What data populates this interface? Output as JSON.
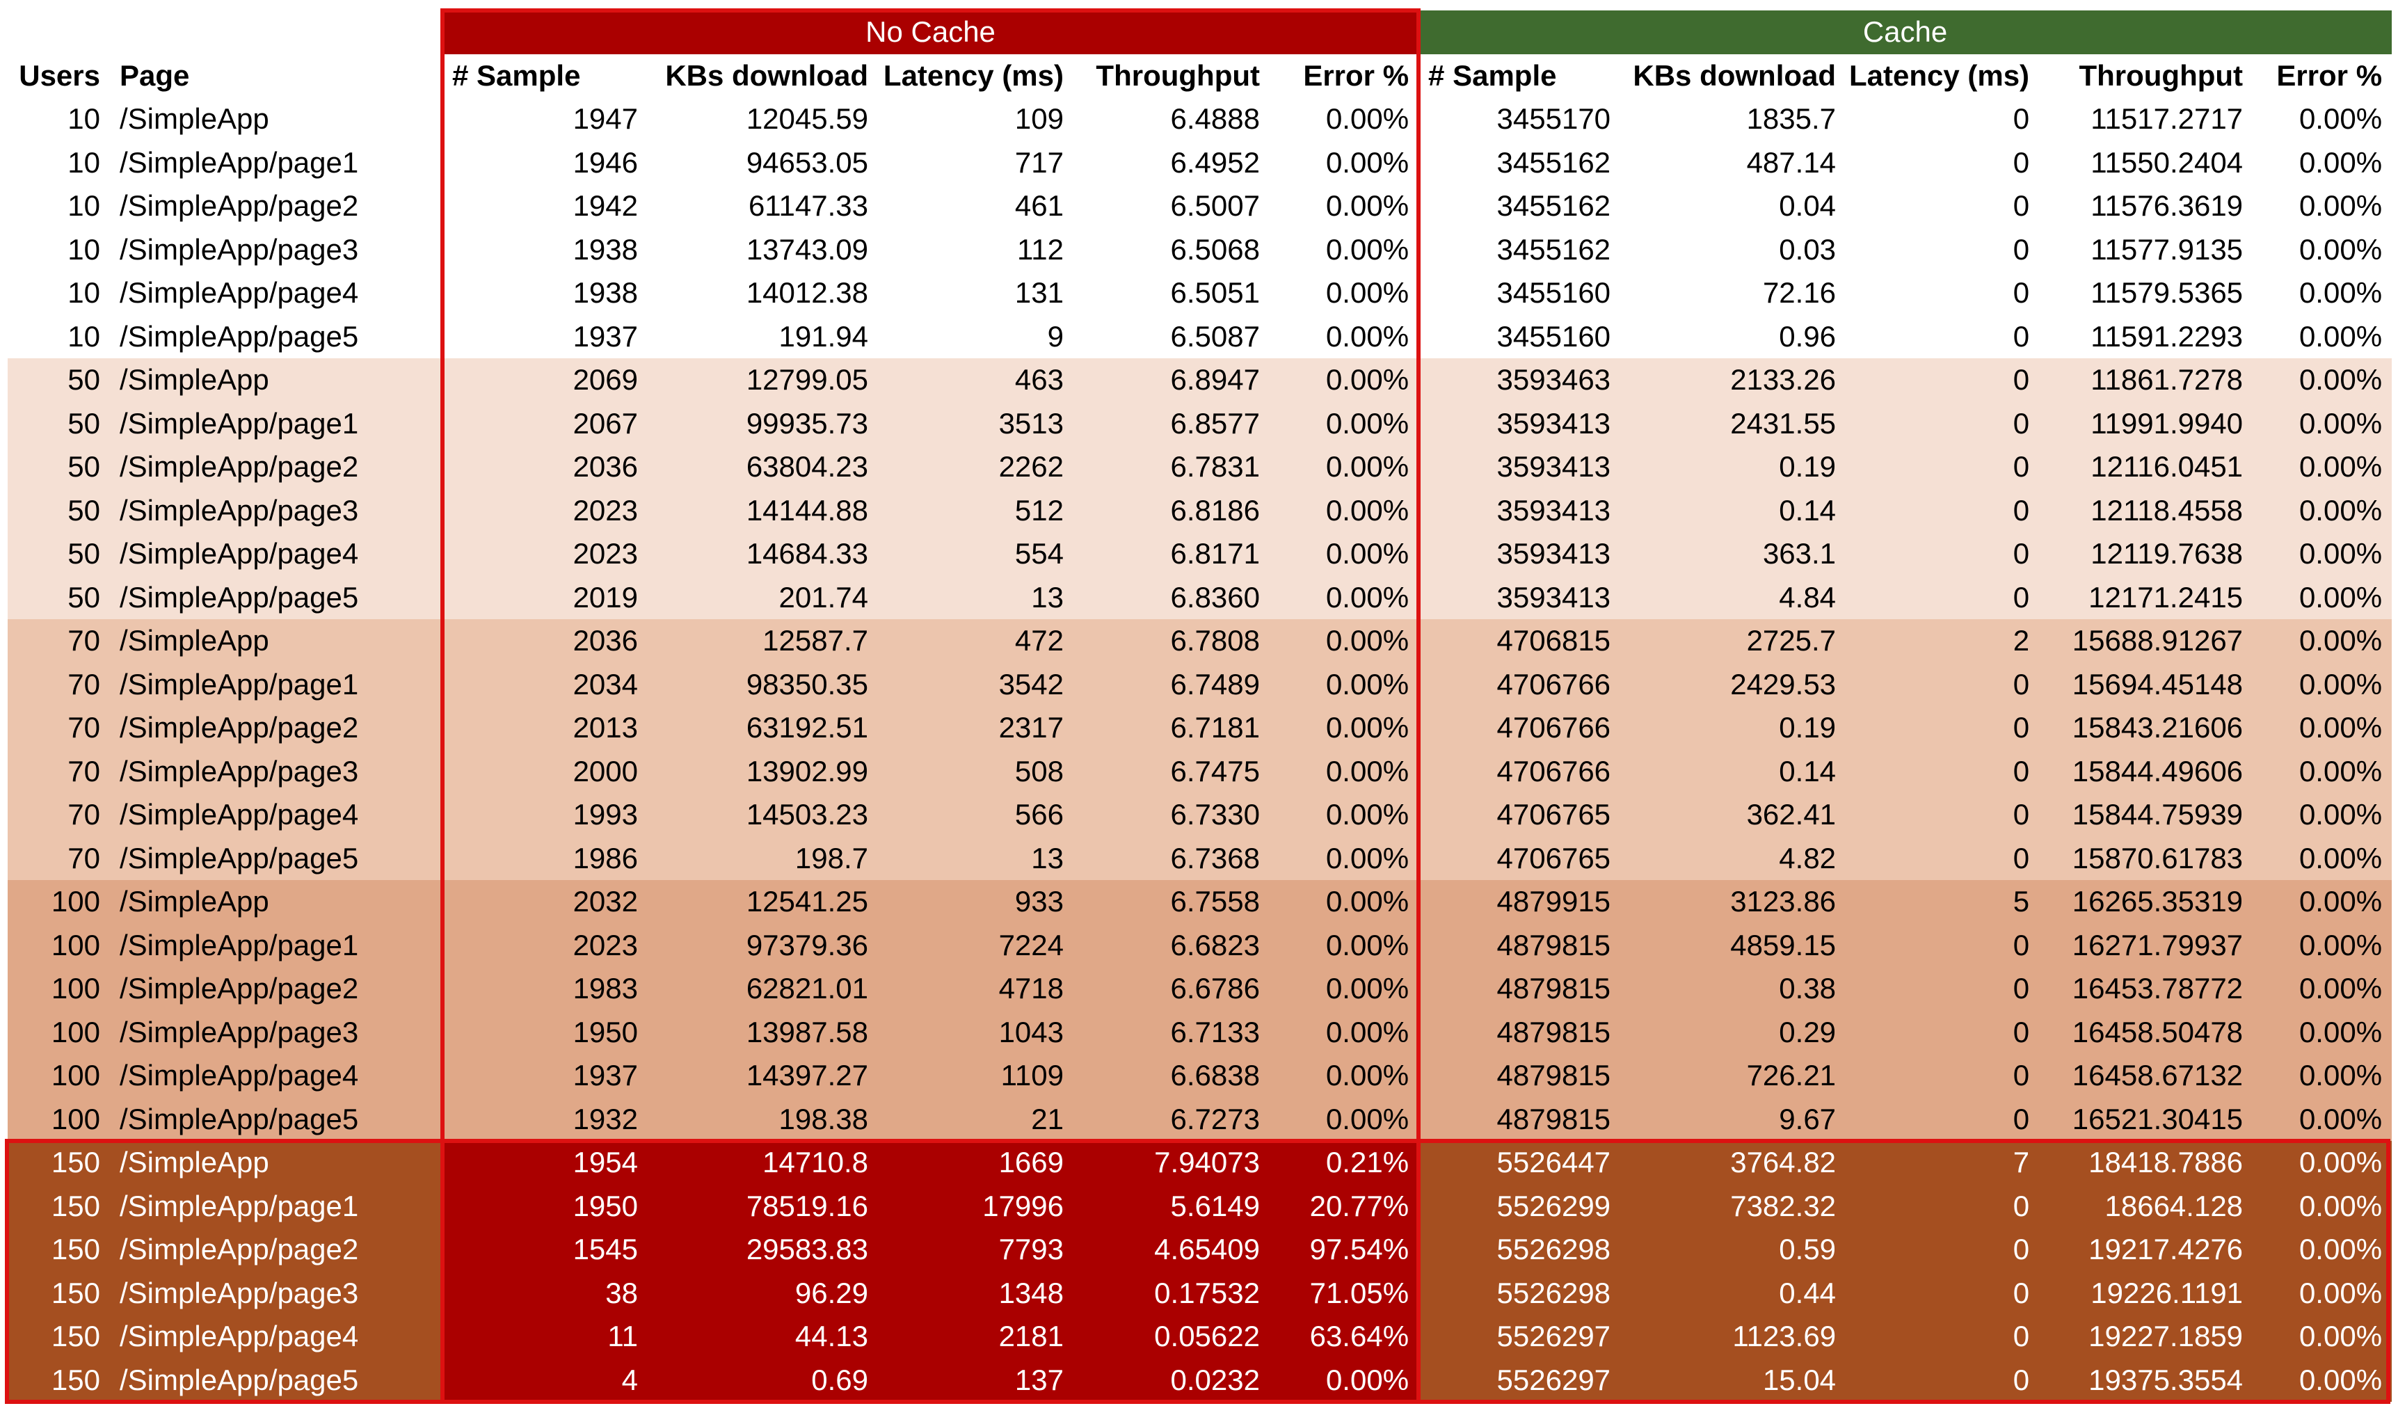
{
  "chart_data": {
    "type": "table",
    "group_headers": {
      "no_cache": "No Cache",
      "cache": "Cache"
    },
    "columns": [
      "Users",
      "Page",
      "# Sample",
      "KBs download",
      "Latency (ms)",
      "Throughput",
      "Error %",
      "# Sample",
      "KBs download",
      "Latency (ms)",
      "Throughput",
      "Error %"
    ],
    "rows": [
      [
        "10",
        "/SimpleApp",
        "1947",
        "12045.59",
        "109",
        "6.4888",
        "0.00%",
        "3455170",
        "1835.7",
        "0",
        "11517.2717",
        "0.00%"
      ],
      [
        "10",
        "/SimpleApp/page1",
        "1946",
        "94653.05",
        "717",
        "6.4952",
        "0.00%",
        "3455162",
        "487.14",
        "0",
        "11550.2404",
        "0.00%"
      ],
      [
        "10",
        "/SimpleApp/page2",
        "1942",
        "61147.33",
        "461",
        "6.5007",
        "0.00%",
        "3455162",
        "0.04",
        "0",
        "11576.3619",
        "0.00%"
      ],
      [
        "10",
        "/SimpleApp/page3",
        "1938",
        "13743.09",
        "112",
        "6.5068",
        "0.00%",
        "3455162",
        "0.03",
        "0",
        "11577.9135",
        "0.00%"
      ],
      [
        "10",
        "/SimpleApp/page4",
        "1938",
        "14012.38",
        "131",
        "6.5051",
        "0.00%",
        "3455160",
        "72.16",
        "0",
        "11579.5365",
        "0.00%"
      ],
      [
        "10",
        "/SimpleApp/page5",
        "1937",
        "191.94",
        "9",
        "6.5087",
        "0.00%",
        "3455160",
        "0.96",
        "0",
        "11591.2293",
        "0.00%"
      ],
      [
        "50",
        "/SimpleApp",
        "2069",
        "12799.05",
        "463",
        "6.8947",
        "0.00%",
        "3593463",
        "2133.26",
        "0",
        "11861.7278",
        "0.00%"
      ],
      [
        "50",
        "/SimpleApp/page1",
        "2067",
        "99935.73",
        "3513",
        "6.8577",
        "0.00%",
        "3593413",
        "2431.55",
        "0",
        "11991.9940",
        "0.00%"
      ],
      [
        "50",
        "/SimpleApp/page2",
        "2036",
        "63804.23",
        "2262",
        "6.7831",
        "0.00%",
        "3593413",
        "0.19",
        "0",
        "12116.0451",
        "0.00%"
      ],
      [
        "50",
        "/SimpleApp/page3",
        "2023",
        "14144.88",
        "512",
        "6.8186",
        "0.00%",
        "3593413",
        "0.14",
        "0",
        "12118.4558",
        "0.00%"
      ],
      [
        "50",
        "/SimpleApp/page4",
        "2023",
        "14684.33",
        "554",
        "6.8171",
        "0.00%",
        "3593413",
        "363.1",
        "0",
        "12119.7638",
        "0.00%"
      ],
      [
        "50",
        "/SimpleApp/page5",
        "2019",
        "201.74",
        "13",
        "6.8360",
        "0.00%",
        "3593413",
        "4.84",
        "0",
        "12171.2415",
        "0.00%"
      ],
      [
        "70",
        "/SimpleApp",
        "2036",
        "12587.7",
        "472",
        "6.7808",
        "0.00%",
        "4706815",
        "2725.7",
        "2",
        "15688.91267",
        "0.00%"
      ],
      [
        "70",
        "/SimpleApp/page1",
        "2034",
        "98350.35",
        "3542",
        "6.7489",
        "0.00%",
        "4706766",
        "2429.53",
        "0",
        "15694.45148",
        "0.00%"
      ],
      [
        "70",
        "/SimpleApp/page2",
        "2013",
        "63192.51",
        "2317",
        "6.7181",
        "0.00%",
        "4706766",
        "0.19",
        "0",
        "15843.21606",
        "0.00%"
      ],
      [
        "70",
        "/SimpleApp/page3",
        "2000",
        "13902.99",
        "508",
        "6.7475",
        "0.00%",
        "4706766",
        "0.14",
        "0",
        "15844.49606",
        "0.00%"
      ],
      [
        "70",
        "/SimpleApp/page4",
        "1993",
        "14503.23",
        "566",
        "6.7330",
        "0.00%",
        "4706765",
        "362.41",
        "0",
        "15844.75939",
        "0.00%"
      ],
      [
        "70",
        "/SimpleApp/page5",
        "1986",
        "198.7",
        "13",
        "6.7368",
        "0.00%",
        "4706765",
        "4.82",
        "0",
        "15870.61783",
        "0.00%"
      ],
      [
        "100",
        "/SimpleApp",
        "2032",
        "12541.25",
        "933",
        "6.7558",
        "0.00%",
        "4879915",
        "3123.86",
        "5",
        "16265.35319",
        "0.00%"
      ],
      [
        "100",
        "/SimpleApp/page1",
        "2023",
        "97379.36",
        "7224",
        "6.6823",
        "0.00%",
        "4879815",
        "4859.15",
        "0",
        "16271.79937",
        "0.00%"
      ],
      [
        "100",
        "/SimpleApp/page2",
        "1983",
        "62821.01",
        "4718",
        "6.6786",
        "0.00%",
        "4879815",
        "0.38",
        "0",
        "16453.78772",
        "0.00%"
      ],
      [
        "100",
        "/SimpleApp/page3",
        "1950",
        "13987.58",
        "1043",
        "6.7133",
        "0.00%",
        "4879815",
        "0.29",
        "0",
        "16458.50478",
        "0.00%"
      ],
      [
        "100",
        "/SimpleApp/page4",
        "1937",
        "14397.27",
        "1109",
        "6.6838",
        "0.00%",
        "4879815",
        "726.21",
        "0",
        "16458.67132",
        "0.00%"
      ],
      [
        "100",
        "/SimpleApp/page5",
        "1932",
        "198.38",
        "21",
        "6.7273",
        "0.00%",
        "4879815",
        "9.67",
        "0",
        "16521.30415",
        "0.00%"
      ],
      [
        "150",
        "/SimpleApp",
        "1954",
        "14710.8",
        "1669",
        "7.94073",
        "0.21%",
        "5526447",
        "3764.82",
        "7",
        "18418.7886",
        "0.00%"
      ],
      [
        "150",
        "/SimpleApp/page1",
        "1950",
        "78519.16",
        "17996",
        "5.6149",
        "20.77%",
        "5526299",
        "7382.32",
        "0",
        "18664.128",
        "0.00%"
      ],
      [
        "150",
        "/SimpleApp/page2",
        "1545",
        "29583.83",
        "7793",
        "4.65409",
        "97.54%",
        "5526298",
        "0.59",
        "0",
        "19217.4276",
        "0.00%"
      ],
      [
        "150",
        "/SimpleApp/page3",
        "38",
        "96.29",
        "1348",
        "0.17532",
        "71.05%",
        "5526298",
        "0.44",
        "0",
        "19226.1191",
        "0.00%"
      ],
      [
        "150",
        "/SimpleApp/page4",
        "11",
        "44.13",
        "2181",
        "0.05622",
        "63.64%",
        "5526297",
        "1123.69",
        "0",
        "19227.1859",
        "0.00%"
      ],
      [
        "150",
        "/SimpleApp/page5",
        "4",
        "0.69",
        "137",
        "0.0232",
        "0.00%",
        "5526297",
        "15.04",
        "0",
        "19375.3554",
        "0.00%"
      ]
    ]
  },
  "colors": {
    "no_cache_header": "#aa0000",
    "cache_header": "#3f6b2f",
    "users_10": "#ffffff",
    "users_50": "#f5e0d4",
    "users_70": "#ecc5ad",
    "users_100": "#e0a888",
    "users_150": "#a54f20",
    "highlight_border": "#dd1111"
  }
}
